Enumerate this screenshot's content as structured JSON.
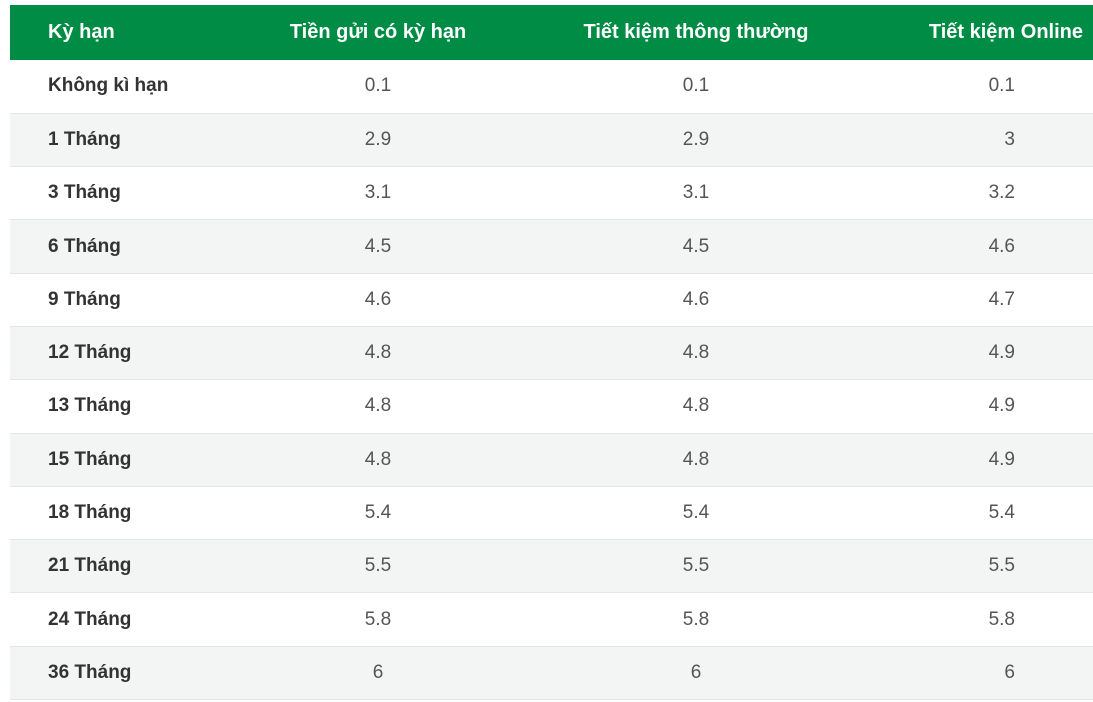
{
  "table": {
    "headers": [
      "Kỳ hạn",
      "Tiền gửi có kỳ hạn",
      "Tiết kiệm thông thường",
      "Tiết kiệm Online"
    ],
    "rows": [
      [
        "Không kì hạn",
        "0.1",
        "0.1",
        "0.1"
      ],
      [
        "1 Tháng",
        "2.9",
        "2.9",
        "3"
      ],
      [
        "3 Tháng",
        "3.1",
        "3.1",
        "3.2"
      ],
      [
        "6 Tháng",
        "4.5",
        "4.5",
        "4.6"
      ],
      [
        "9 Tháng",
        "4.6",
        "4.6",
        "4.7"
      ],
      [
        "12 Tháng",
        "4.8",
        "4.8",
        "4.9"
      ],
      [
        "13 Tháng",
        "4.8",
        "4.8",
        "4.9"
      ],
      [
        "15 Tháng",
        "4.8",
        "4.8",
        "4.9"
      ],
      [
        "18 Tháng",
        "5.4",
        "5.4",
        "5.4"
      ],
      [
        "21 Tháng",
        "5.5",
        "5.5",
        "5.5"
      ],
      [
        "24 Tháng",
        "5.8",
        "5.8",
        "5.8"
      ],
      [
        "36 Tháng",
        "6",
        "6",
        "6"
      ]
    ]
  },
  "colors": {
    "header_bg": "#008c44",
    "header_text": "#ffffff",
    "stripe_bg": "#f2f5f3"
  }
}
